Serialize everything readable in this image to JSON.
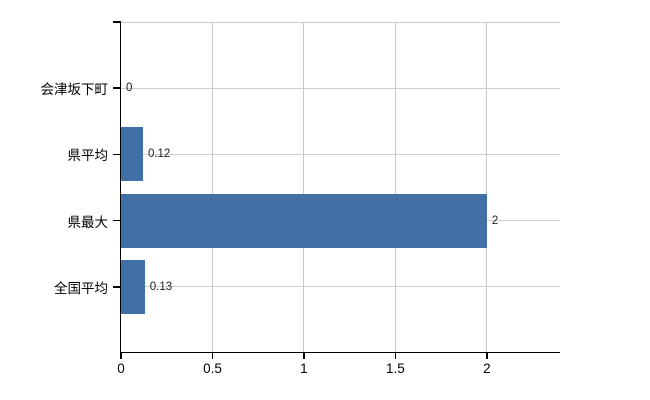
{
  "chart_data": {
    "type": "bar",
    "orientation": "horizontal",
    "categories": [
      "会津坂下町",
      "県平均",
      "県最大",
      "全国平均"
    ],
    "values": [
      0,
      0.12,
      2,
      0.13
    ],
    "value_labels": [
      "0",
      "0.12",
      "2",
      "0.13"
    ],
    "x_ticks": [
      0,
      0.5,
      1,
      1.5,
      2
    ],
    "x_tick_labels": [
      "0",
      "0.5",
      "1",
      "1.5",
      "2"
    ],
    "xlim": [
      0,
      2.4
    ],
    "grid": true,
    "legend": false,
    "colors": {
      "bar": "#4170a6",
      "axis": "#000000",
      "vertical_gridline": "#c9c9c9",
      "horizontal_gridline": "#cad0c8",
      "plot_top_border": "#c9c9c9",
      "value_label_text": "#222222",
      "axis_label_text": "#000000"
    }
  }
}
